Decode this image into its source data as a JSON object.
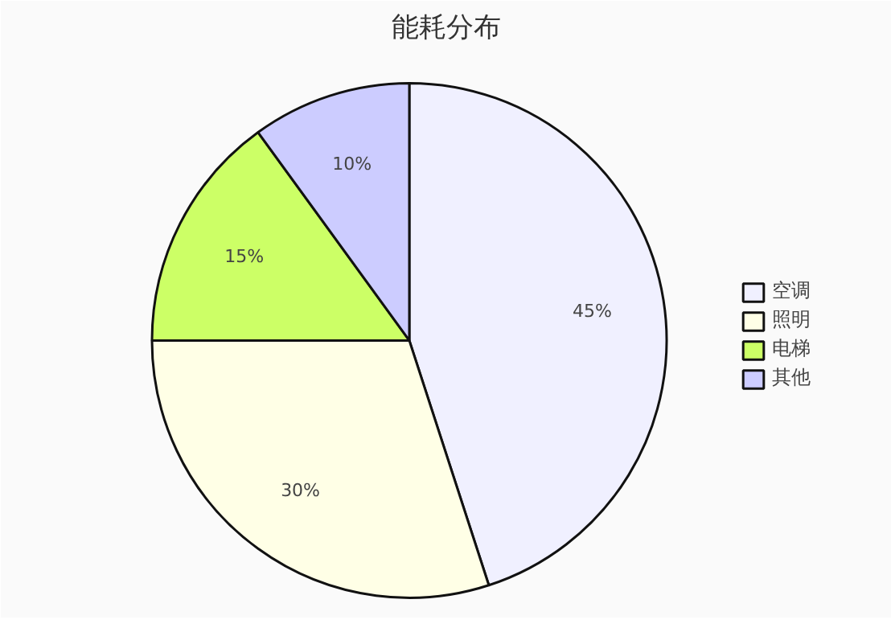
{
  "chart_data": {
    "type": "pie",
    "title": "能耗分布",
    "categories": [
      "空调",
      "照明",
      "电梯",
      "其他"
    ],
    "values": [
      45,
      30,
      15,
      10
    ],
    "colors": [
      "#f0f0ff",
      "#ffffe6",
      "#ccff66",
      "#ccccff"
    ],
    "value_labels": [
      "45%",
      "30%",
      "15%",
      "10%"
    ],
    "legend": "right"
  }
}
